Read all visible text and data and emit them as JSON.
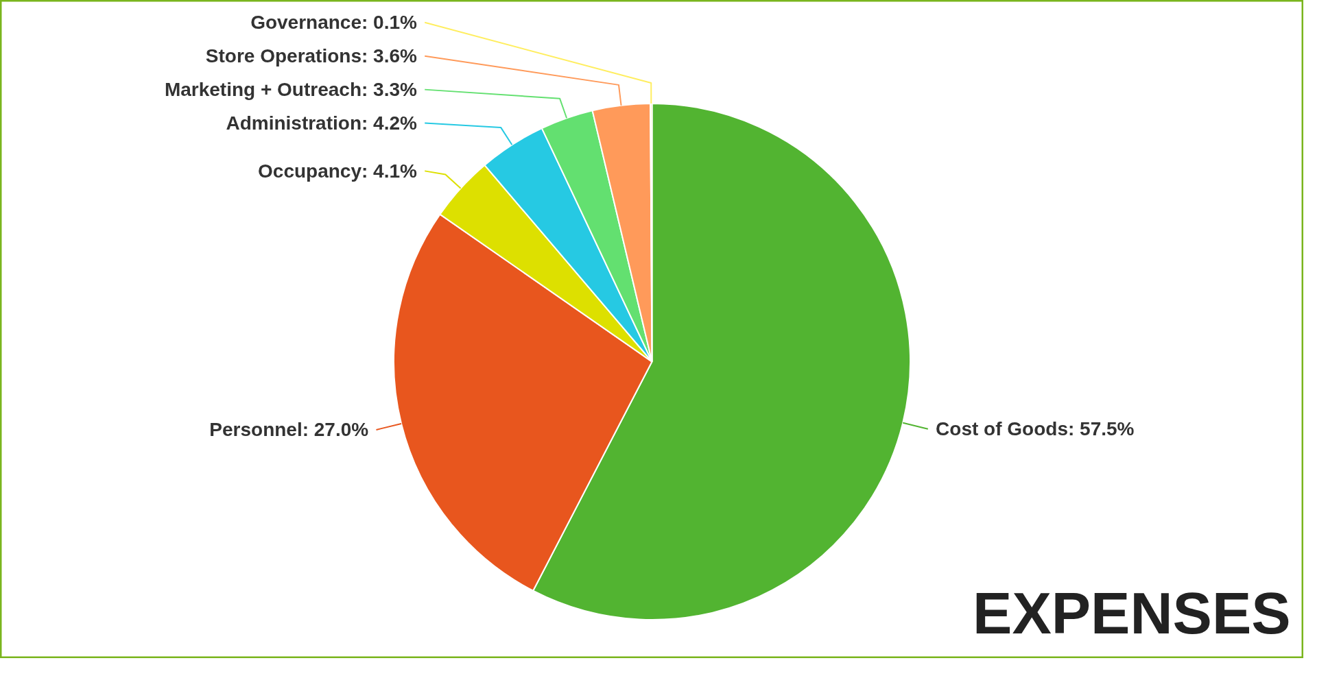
{
  "chart_data": {
    "type": "pie",
    "title": "EXPENSES",
    "categories": [
      "Cost of Goods",
      "Personnel",
      "Occupancy",
      "Administration",
      "Marketing + Outreach",
      "Store Operations",
      "Governance"
    ],
    "values": [
      57.5,
      27.0,
      4.1,
      4.2,
      3.3,
      3.6,
      0.1
    ],
    "value_labels": [
      "57.5%",
      "27.0%",
      "4.1%",
      "4.2%",
      "3.3%",
      "3.6%",
      "0.1%"
    ],
    "colors": [
      "#52b431",
      "#e8561e",
      "#dde000",
      "#26c9e3",
      "#63e070",
      "#ff9a5a",
      "#ffee60"
    ]
  }
}
